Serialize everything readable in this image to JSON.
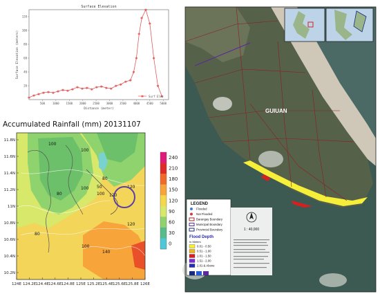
{
  "chart_data": [
    {
      "type": "line",
      "title": "Surface Elevation",
      "xlabel": "Distance (meter)",
      "ylabel": "Surface Elevation (meters)",
      "x_ticks": [
        500,
        1000,
        1500,
        2000,
        2500,
        3000,
        3500,
        4000,
        4500,
        5000
      ],
      "y_ticks": [
        20,
        40,
        60,
        80,
        100,
        120
      ],
      "xlim": [
        0,
        5200
      ],
      "ylim": [
        0,
        130
      ],
      "grid": false,
      "legend": "bottom-right",
      "series": [
        {
          "name": "Surf Elev",
          "color": "#e05a5a",
          "x": [
            0,
            180,
            360,
            540,
            720,
            900,
            1080,
            1260,
            1440,
            1620,
            1800,
            1980,
            2160,
            2340,
            2520,
            2700,
            2880,
            3060,
            3240,
            3420,
            3600,
            3780,
            3900,
            4000,
            4100,
            4200,
            4350,
            4500,
            4650,
            4800,
            4950
          ],
          "values": [
            3,
            6,
            8,
            10,
            11,
            10,
            12,
            14,
            13,
            15,
            18,
            16,
            17,
            15,
            18,
            19,
            17,
            16,
            20,
            22,
            26,
            28,
            40,
            60,
            95,
            118,
            130,
            110,
            60,
            20,
            5
          ]
        }
      ]
    },
    {
      "type": "heatmap",
      "title": "Accumulated Rainfall (mm) 20131107",
      "x_ticks": [
        "124E",
        "124.2E",
        "124.4E",
        "124.6E",
        "124.8E",
        "125E",
        "125.2E",
        "125.4E",
        "125.6E",
        "125.8E",
        "126E"
      ],
      "y_ticks": [
        "11.8N",
        "11.6N",
        "11.4N",
        "11.2N",
        "11N",
        "10.8N",
        "10.6N",
        "10.4N",
        "10.2N"
      ],
      "contour_labels": [
        "100",
        "100",
        "80",
        "50",
        "120",
        "100",
        "80",
        "120",
        "100",
        "80",
        "100",
        "120",
        "140"
      ],
      "colorbar_ticks": [
        240,
        210,
        180,
        150,
        120,
        90,
        60,
        30,
        0
      ],
      "colorbar_colors": [
        "#e0197a",
        "#e02a2a",
        "#f06a2a",
        "#f7a43a",
        "#f5d74a",
        "#d8e86a",
        "#8fd36e",
        "#59bb8a",
        "#4ec8d8"
      ],
      "colors": {
        "high": "#e9502a",
        "mid": "#f3d55a",
        "low": "#6cc06a",
        "water": "#79d2cf",
        "marker": "#5c3fa3"
      }
    }
  ],
  "flood_map": {
    "place_label": "GUIUAN",
    "legend": {
      "title": "LEGEND",
      "items": [
        {
          "label": "Flooded",
          "color": "#3b7fd6"
        },
        {
          "label": "Not Flooded",
          "color": "#d63b3b"
        },
        {
          "label": "Barangay Boundary",
          "color": "#9a2a2a"
        },
        {
          "label": "Municipal Boundary",
          "color": "#5a2a9a"
        },
        {
          "label": "Provincial Boundary",
          "color": "#1a2a7a"
        }
      ]
    },
    "scale": "1 : 40,000",
    "flood_depth": {
      "title": "Flood Depth",
      "units": "In Meters",
      "items": [
        {
          "label": "0.01 - 0.50",
          "color": "#f5ef3a"
        },
        {
          "label": "0.51 - 1.00",
          "color": "#f2b51c"
        },
        {
          "label": "1.01 - 1.50",
          "color": "#d62020"
        },
        {
          "label": "1.51 - 2.00",
          "color": "#7b2ad6"
        },
        {
          "label": "2.01 & Above",
          "color": "#2a2ab0"
        }
      ]
    },
    "colors": {
      "sea": "#3c5a52",
      "land": "#56614a",
      "beach": "#cfc7b8",
      "boundary": "#8a1f1f"
    }
  }
}
